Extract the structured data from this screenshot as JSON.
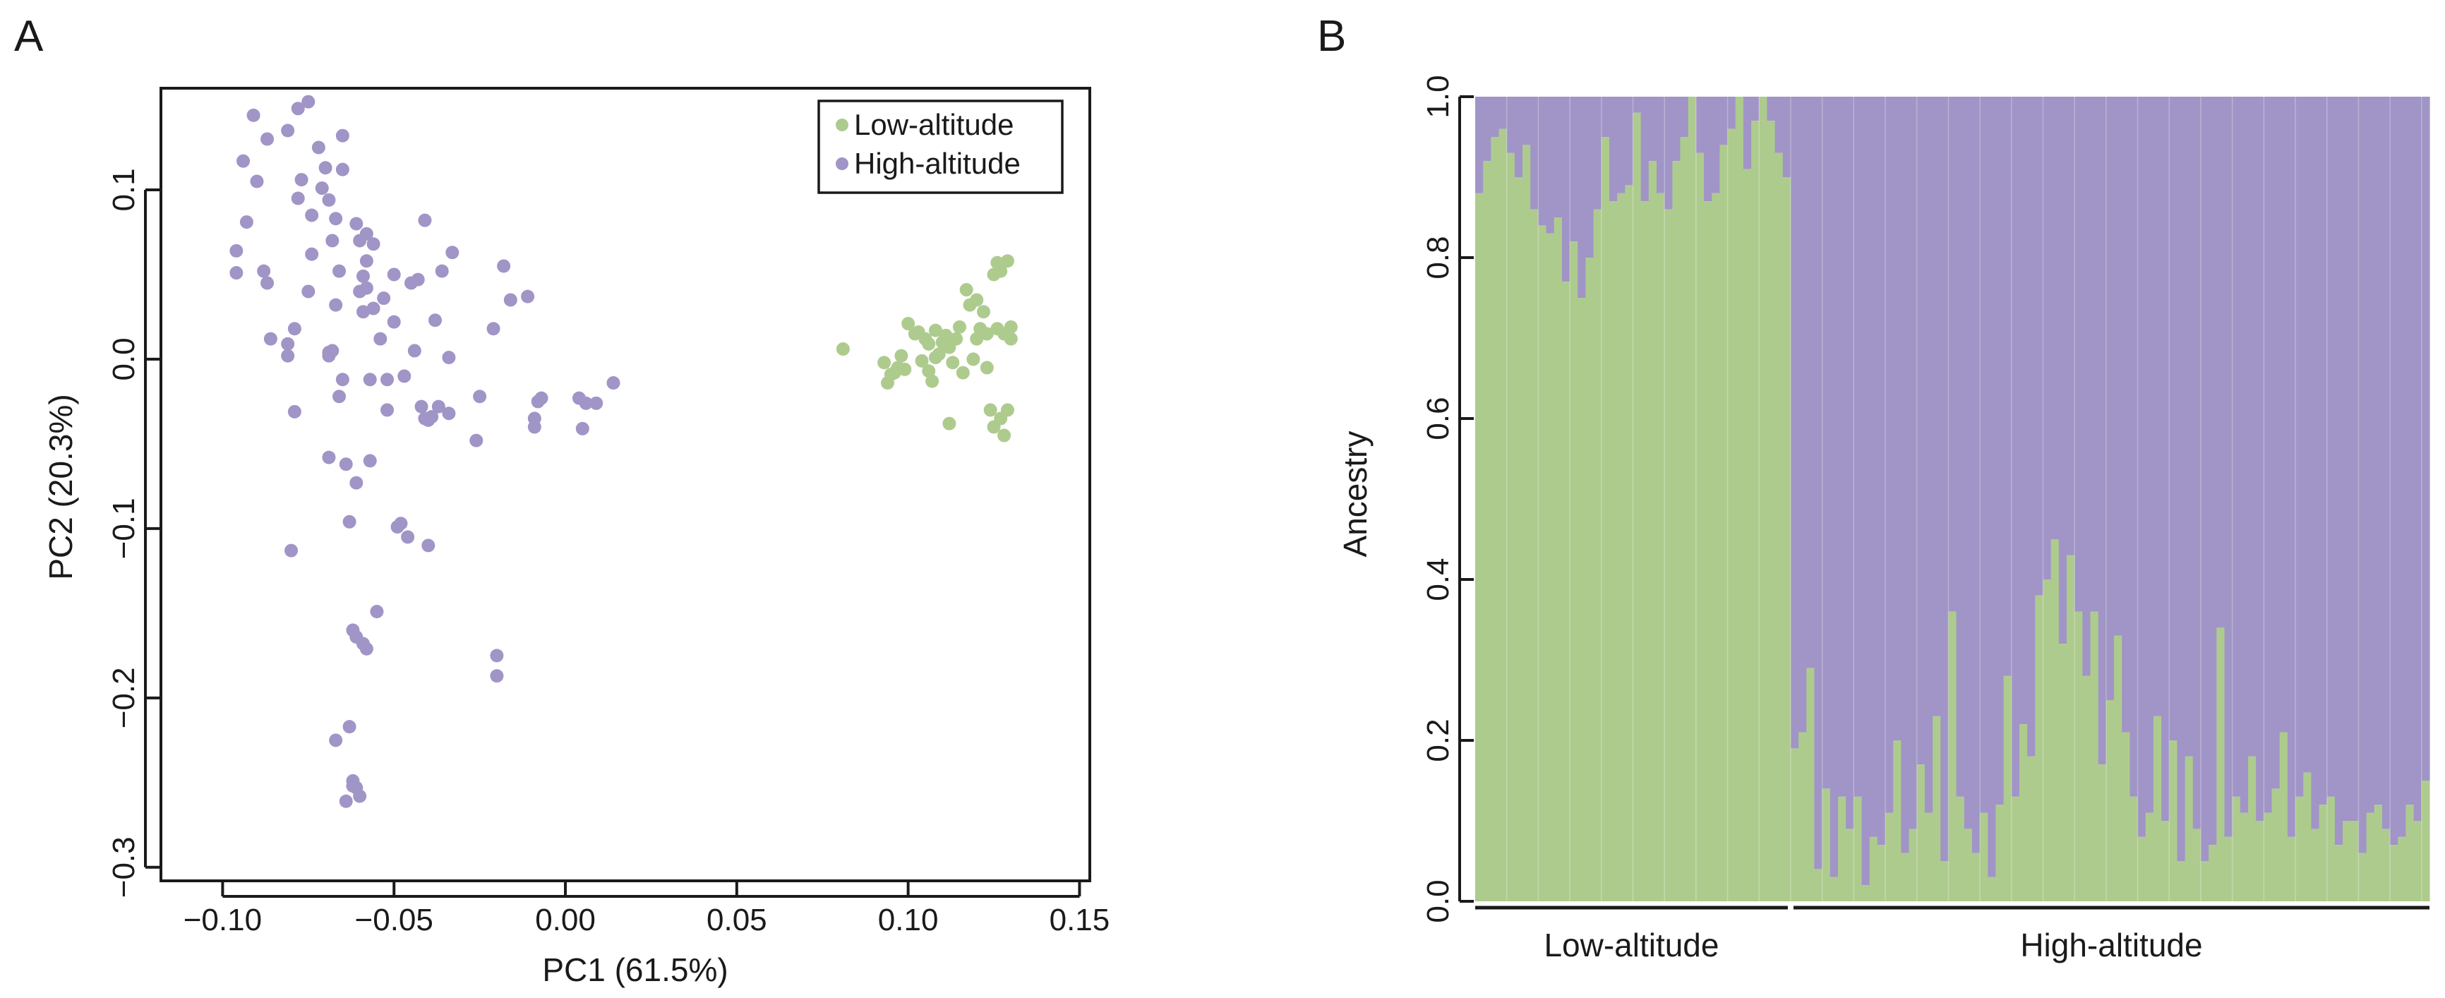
{
  "colors": {
    "low": "#aecb8e",
    "high": "#a095c6",
    "axis": "#1a1a1a"
  },
  "chart_data": [
    {
      "panel_label": "A",
      "type": "scatter",
      "xlabel": "PC1 (61.5%)",
      "ylabel": "PC2 (20.3%)",
      "xlim": [
        -0.118,
        0.153
      ],
      "ylim": [
        -0.308,
        0.16
      ],
      "xticks": [
        -0.1,
        -0.05,
        0.0,
        0.05,
        0.1,
        0.15
      ],
      "xtick_labels": [
        "−0.10",
        "−0.05",
        "0.00",
        "0.05",
        "0.10",
        "0.15"
      ],
      "yticks": [
        -0.3,
        -0.2,
        -0.1,
        0.0,
        0.1
      ],
      "ytick_labels": [
        "−0.3",
        "−0.2",
        "−0.1",
        "0.0",
        "0.1"
      ],
      "legend": {
        "position": "top-right",
        "entries": [
          "Low-altitude",
          "High-altitude"
        ]
      },
      "series": [
        {
          "name": "Low-altitude",
          "points": [
            [
              0.081,
              0.006
            ],
            [
              0.093,
              -0.002
            ],
            [
              0.094,
              -0.014
            ],
            [
              0.095,
              -0.009
            ],
            [
              0.096,
              -0.008
            ],
            [
              0.097,
              -0.005
            ],
            [
              0.098,
              0.002
            ],
            [
              0.099,
              -0.006
            ],
            [
              0.1,
              0.021
            ],
            [
              0.102,
              0.015
            ],
            [
              0.103,
              0.016
            ],
            [
              0.104,
              -0.001
            ],
            [
              0.105,
              0.012
            ],
            [
              0.106,
              -0.007
            ],
            [
              0.106,
              0.009
            ],
            [
              0.107,
              -0.013
            ],
            [
              0.108,
              0.001
            ],
            [
              0.108,
              0.017
            ],
            [
              0.109,
              0.003
            ],
            [
              0.11,
              0.01
            ],
            [
              0.111,
              0.014
            ],
            [
              0.112,
              0.007
            ],
            [
              0.112,
              -0.038
            ],
            [
              0.113,
              -0.002
            ],
            [
              0.114,
              0.012
            ],
            [
              0.115,
              0.019
            ],
            [
              0.116,
              -0.008
            ],
            [
              0.117,
              0.041
            ],
            [
              0.118,
              0.032
            ],
            [
              0.119,
              0.0
            ],
            [
              0.12,
              0.012
            ],
            [
              0.12,
              0.035
            ],
            [
              0.121,
              0.018
            ],
            [
              0.122,
              0.028
            ],
            [
              0.123,
              -0.005
            ],
            [
              0.123,
              0.015
            ],
            [
              0.124,
              -0.03
            ],
            [
              0.125,
              0.05
            ],
            [
              0.125,
              -0.04
            ],
            [
              0.126,
              0.057
            ],
            [
              0.126,
              0.018
            ],
            [
              0.127,
              0.052
            ],
            [
              0.127,
              -0.035
            ],
            [
              0.128,
              0.015
            ],
            [
              0.128,
              -0.045
            ],
            [
              0.129,
              0.058
            ],
            [
              0.129,
              -0.03
            ],
            [
              0.13,
              0.019
            ],
            [
              0.13,
              0.012
            ]
          ]
        },
        {
          "name": "High-altitude",
          "points": [
            [
              -0.096,
              0.064
            ],
            [
              -0.096,
              0.051
            ],
            [
              -0.094,
              0.117
            ],
            [
              -0.093,
              0.081
            ],
            [
              -0.091,
              0.144
            ],
            [
              -0.09,
              0.105
            ],
            [
              -0.088,
              0.052
            ],
            [
              -0.087,
              0.13
            ],
            [
              -0.087,
              0.045
            ],
            [
              -0.086,
              0.012
            ],
            [
              -0.081,
              0.135
            ],
            [
              -0.081,
              0.002
            ],
            [
              -0.081,
              0.009
            ],
            [
              -0.08,
              -0.113
            ],
            [
              -0.079,
              -0.031
            ],
            [
              -0.079,
              0.018
            ],
            [
              -0.078,
              0.148
            ],
            [
              -0.078,
              0.095
            ],
            [
              -0.077,
              0.106
            ],
            [
              -0.075,
              0.152
            ],
            [
              -0.075,
              0.04
            ],
            [
              -0.074,
              0.062
            ],
            [
              -0.074,
              0.085
            ],
            [
              -0.072,
              0.125
            ],
            [
              -0.071,
              0.101
            ],
            [
              -0.07,
              0.113
            ],
            [
              -0.069,
              0.094
            ],
            [
              -0.069,
              0.004
            ],
            [
              -0.069,
              0.002
            ],
            [
              -0.069,
              -0.058
            ],
            [
              -0.068,
              0.005
            ],
            [
              -0.068,
              0.07
            ],
            [
              -0.067,
              -0.225
            ],
            [
              -0.067,
              0.032
            ],
            [
              -0.067,
              0.083
            ],
            [
              -0.066,
              -0.022
            ],
            [
              -0.066,
              0.052
            ],
            [
              -0.065,
              0.112
            ],
            [
              -0.065,
              -0.012
            ],
            [
              -0.065,
              0.132
            ],
            [
              -0.064,
              -0.062
            ],
            [
              -0.064,
              -0.261
            ],
            [
              -0.063,
              -0.096
            ],
            [
              -0.063,
              -0.217
            ],
            [
              -0.062,
              -0.16
            ],
            [
              -0.062,
              -0.249
            ],
            [
              -0.062,
              -0.252
            ],
            [
              -0.061,
              -0.073
            ],
            [
              -0.061,
              -0.164
            ],
            [
              -0.061,
              -0.253
            ],
            [
              -0.061,
              0.08
            ],
            [
              -0.06,
              0.04
            ],
            [
              -0.06,
              0.07
            ],
            [
              -0.06,
              -0.258
            ],
            [
              -0.059,
              0.028
            ],
            [
              -0.059,
              0.049
            ],
            [
              -0.059,
              -0.168
            ],
            [
              -0.058,
              -0.171
            ],
            [
              -0.058,
              0.074
            ],
            [
              -0.058,
              0.058
            ],
            [
              -0.058,
              0.042
            ],
            [
              -0.057,
              -0.012
            ],
            [
              -0.057,
              -0.06
            ],
            [
              -0.056,
              0.03
            ],
            [
              -0.056,
              0.068
            ],
            [
              -0.055,
              -0.149
            ],
            [
              -0.054,
              0.012
            ],
            [
              -0.053,
              0.036
            ],
            [
              -0.052,
              -0.012
            ],
            [
              -0.052,
              -0.03
            ],
            [
              -0.05,
              0.022
            ],
            [
              -0.05,
              0.05
            ],
            [
              -0.049,
              -0.099
            ],
            [
              -0.048,
              -0.097
            ],
            [
              -0.047,
              -0.01
            ],
            [
              -0.046,
              -0.105
            ],
            [
              -0.045,
              0.045
            ],
            [
              -0.044,
              0.005
            ],
            [
              -0.043,
              0.047
            ],
            [
              -0.042,
              -0.028
            ],
            [
              -0.041,
              0.082
            ],
            [
              -0.041,
              -0.035
            ],
            [
              -0.04,
              -0.11
            ],
            [
              -0.04,
              -0.036
            ],
            [
              -0.039,
              -0.034
            ],
            [
              -0.038,
              0.023
            ],
            [
              -0.037,
              -0.028
            ],
            [
              -0.036,
              0.052
            ],
            [
              -0.034,
              0.001
            ],
            [
              -0.034,
              -0.032
            ],
            [
              -0.033,
              0.063
            ],
            [
              -0.026,
              -0.048
            ],
            [
              -0.025,
              -0.022
            ],
            [
              -0.021,
              0.018
            ],
            [
              -0.02,
              -0.175
            ],
            [
              -0.02,
              -0.187
            ],
            [
              -0.018,
              0.055
            ],
            [
              -0.016,
              0.035
            ],
            [
              -0.011,
              0.037
            ],
            [
              -0.009,
              -0.035
            ],
            [
              -0.009,
              -0.04
            ],
            [
              -0.008,
              -0.025
            ],
            [
              -0.007,
              -0.023
            ],
            [
              0.004,
              -0.023
            ],
            [
              0.005,
              -0.041
            ],
            [
              0.006,
              -0.026
            ],
            [
              0.009,
              -0.026
            ],
            [
              0.014,
              -0.014
            ]
          ]
        }
      ]
    },
    {
      "panel_label": "B",
      "type": "bar",
      "stacked": true,
      "ylabel": "Ancestry",
      "ylim": [
        0.0,
        1.0
      ],
      "yticks": [
        0.0,
        0.2,
        0.4,
        0.6,
        0.8,
        1.0
      ],
      "ytick_labels": [
        "0.0",
        "0.2",
        "0.4",
        "0.6",
        "0.8",
        "1.0"
      ],
      "groups": [
        {
          "label": "Low-altitude",
          "count": 40
        },
        {
          "label": "High-altitude",
          "count": 81
        }
      ],
      "series": [
        {
          "name": "Low-altitude ancestry",
          "values": [
            0.88,
            0.92,
            0.95,
            0.96,
            0.93,
            0.9,
            0.94,
            0.86,
            0.84,
            0.83,
            0.85,
            0.77,
            0.82,
            0.75,
            0.8,
            0.86,
            0.95,
            0.87,
            0.88,
            0.89,
            0.98,
            0.87,
            0.92,
            0.88,
            0.86,
            0.92,
            0.95,
            1.0,
            0.93,
            0.87,
            0.88,
            0.94,
            0.96,
            1.0,
            0.91,
            0.97,
            1.0,
            0.97,
            0.93,
            0.9,
            0.19,
            0.21,
            0.29,
            0.04,
            0.14,
            0.03,
            0.13,
            0.09,
            0.13,
            0.02,
            0.08,
            0.07,
            0.11,
            0.2,
            0.06,
            0.09,
            0.17,
            0.11,
            0.23,
            0.05,
            0.36,
            0.13,
            0.09,
            0.06,
            0.11,
            0.03,
            0.12,
            0.28,
            0.13,
            0.22,
            0.18,
            0.38,
            0.4,
            0.45,
            0.32,
            0.43,
            0.36,
            0.28,
            0.36,
            0.17,
            0.25,
            0.33,
            0.21,
            0.13,
            0.08,
            0.11,
            0.23,
            0.1,
            0.2,
            0.05,
            0.18,
            0.09,
            0.05,
            0.07,
            0.34,
            0.08,
            0.13,
            0.11,
            0.18,
            0.1,
            0.11,
            0.14,
            0.21,
            0.08,
            0.13,
            0.16,
            0.09,
            0.12,
            0.13,
            0.07,
            0.1,
            0.1,
            0.06,
            0.11,
            0.12,
            0.09,
            0.07,
            0.08,
            0.12,
            0.1,
            0.15
          ]
        }
      ]
    }
  ]
}
